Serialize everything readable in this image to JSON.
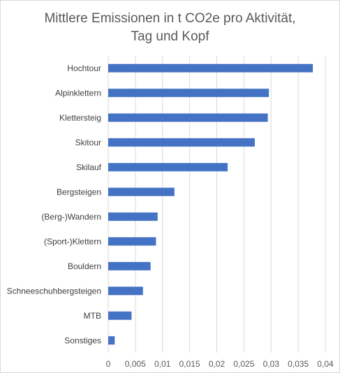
{
  "chart_data": {
    "type": "bar",
    "orientation": "horizontal",
    "title_lines": [
      "Mittlere Emissionen in t CO2e pro Aktivität,",
      "Tag und Kopf"
    ],
    "categories": [
      "Hochtour",
      "Alpinklettern",
      "Klettersteig",
      "Skitour",
      "Skilauf",
      "Bergsteigen",
      "(Berg-)Wandern",
      "(Sport-)Klettern",
      "Bouldern",
      "Schneeschuhbergsteigen",
      "MTB",
      "Sonstiges"
    ],
    "values": [
      0.0377,
      0.0296,
      0.0294,
      0.027,
      0.022,
      0.0122,
      0.0091,
      0.0088,
      0.0078,
      0.0064,
      0.0043,
      0.0012
    ],
    "xlim": [
      0,
      0.04
    ],
    "xticks": [
      "0",
      "0,005",
      "0,01",
      "0,015",
      "0,02",
      "0,025",
      "0,03",
      "0,035",
      "0,04"
    ],
    "bar_color": "#4472c4",
    "grid": true,
    "legend": "none"
  }
}
